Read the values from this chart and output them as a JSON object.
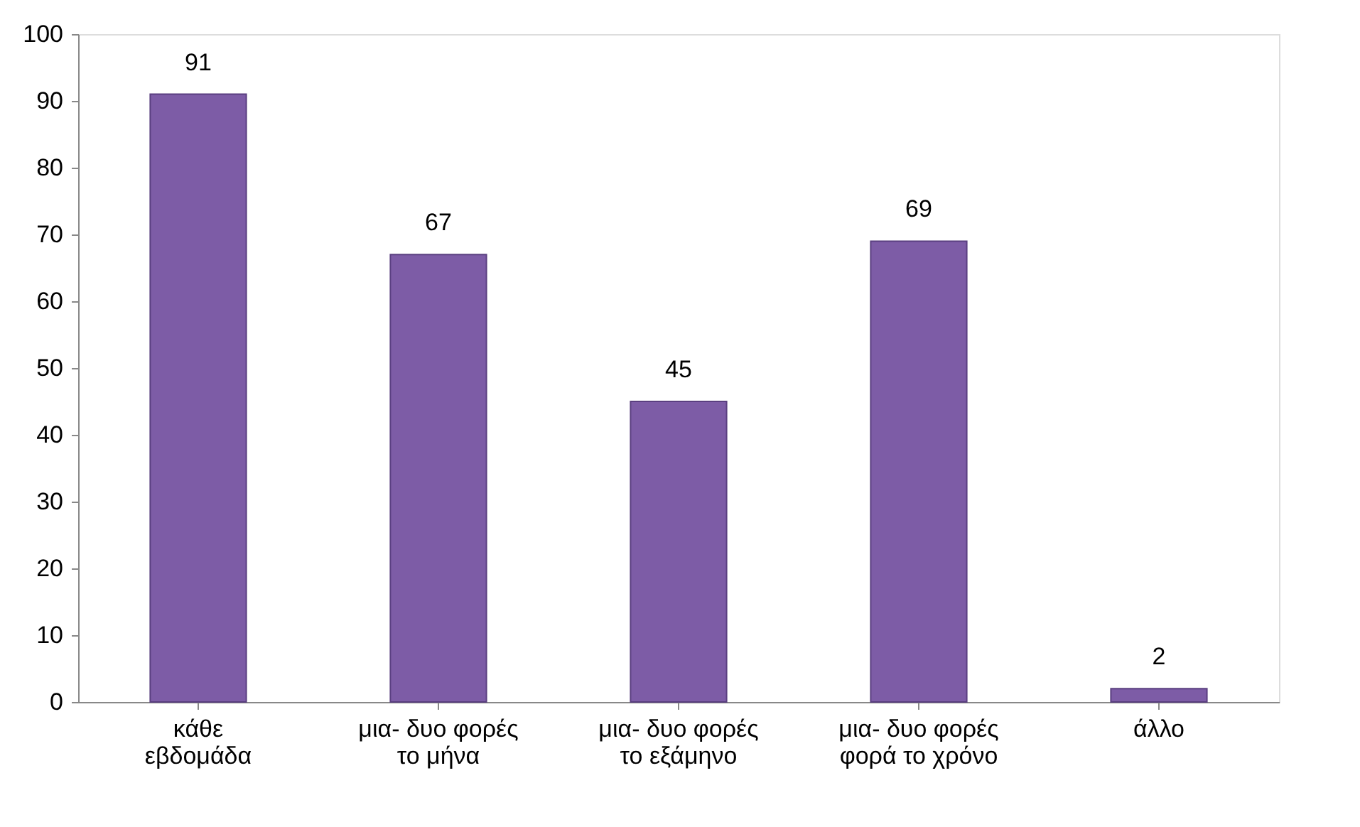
{
  "chart_data": {
    "type": "bar",
    "categories": [
      "κάθε\nεβδομάδα",
      "μια- δυο φορές\nτο μήνα",
      "μια- δυο φορές\nτο εξάμηνο",
      "μια- δυο φορές\nφορά το χρόνο",
      "άλλο"
    ],
    "values": [
      91,
      67,
      45,
      69,
      2
    ],
    "color": "#7d5ca6",
    "ylim": [
      0,
      100
    ],
    "yticks": [
      0,
      10,
      20,
      30,
      40,
      50,
      60,
      70,
      80,
      90,
      100
    ],
    "grid": false,
    "data_labels": true
  }
}
